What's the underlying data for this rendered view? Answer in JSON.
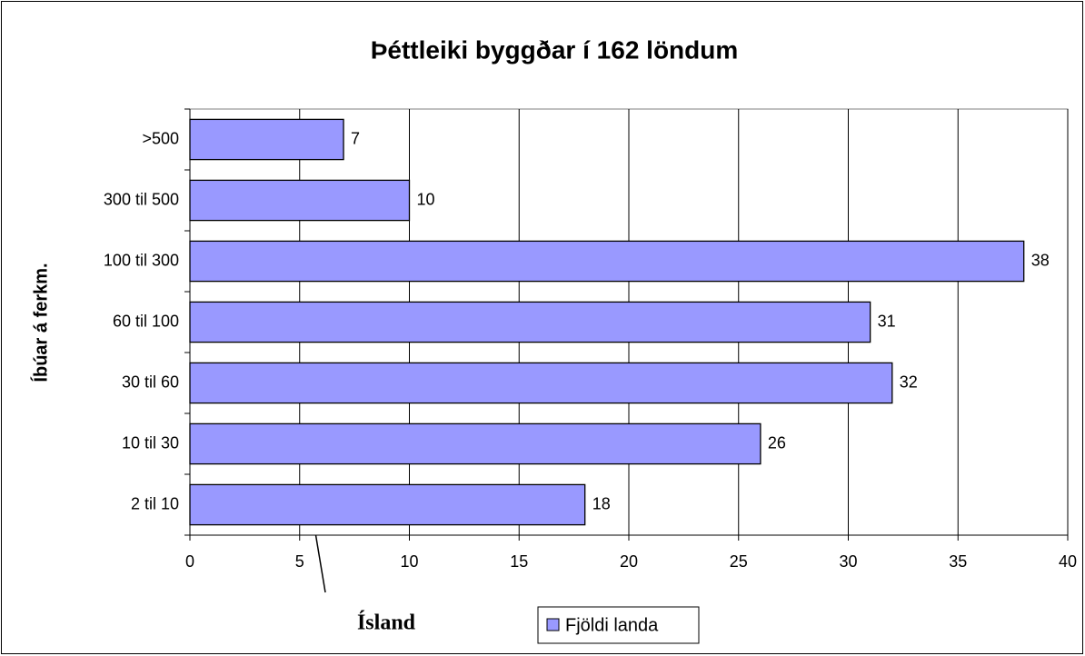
{
  "chart_data": {
    "type": "bar",
    "orientation": "horizontal",
    "title": "Þéttleiki byggðar í 162 löndum",
    "y_label": "Íbúar á ferkm.",
    "categories": [
      ">500",
      "300 til 500",
      "100 til 300",
      "60 til 100",
      "30 til 60",
      "10 til 30",
      "2 til 10"
    ],
    "series": [
      {
        "name": "Fjöldi landa",
        "color": "#9999ff",
        "values": [
          7,
          10,
          38,
          31,
          32,
          26,
          18
        ]
      }
    ],
    "xlim": [
      0,
      40
    ],
    "xticks": [
      0,
      5,
      10,
      15,
      20,
      25,
      30,
      35,
      40
    ],
    "grid": true,
    "annotation": "Ísland",
    "legend": "bottom"
  }
}
